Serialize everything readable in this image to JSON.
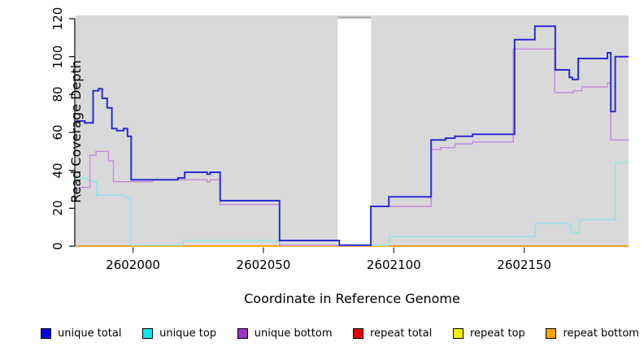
{
  "chart_data": {
    "type": "line",
    "subtype": "step",
    "title": "",
    "xlabel": "Coordinate in Reference Genome",
    "ylabel": "Read Coverage Depth",
    "xlim": [
      2601978,
      2602190
    ],
    "ylim": [
      0,
      120
    ],
    "grid": false,
    "legend_position": "bottom",
    "plot_background": "#d9d9d9",
    "masked_region": {
      "x_start": 2602078.5,
      "x_end": 2602091.3,
      "color": "#ffffff",
      "top_edge_color": "#a6a6a6"
    },
    "x_ticks": [
      {
        "value": 2602000,
        "label": "2602000"
      },
      {
        "value": 2602050,
        "label": "2602050"
      },
      {
        "value": 2602100,
        "label": "2602100"
      },
      {
        "value": 2602150,
        "label": "2602150"
      }
    ],
    "y_ticks": [
      {
        "value": 0,
        "label": "0"
      },
      {
        "value": 20,
        "label": "20"
      },
      {
        "value": 40,
        "label": "40"
      },
      {
        "value": 60,
        "label": "60"
      },
      {
        "value": 80,
        "label": "80"
      },
      {
        "value": 100,
        "label": "100"
      },
      {
        "value": 120,
        "label": "120"
      }
    ],
    "draw_order": [
      3,
      4,
      5,
      1,
      2,
      0
    ],
    "series": [
      {
        "id": "unique-total",
        "label": "unique total",
        "color": "#2b2bd5",
        "legend_color": "#0000e0",
        "width": 2,
        "points": [
          [
            2601978,
            66
          ],
          [
            2601981.5,
            65
          ],
          [
            2601984.7,
            82
          ],
          [
            2601986.8,
            83
          ],
          [
            2601988.2,
            78
          ],
          [
            2601990.1,
            73
          ],
          [
            2601991.9,
            62
          ],
          [
            2601993.8,
            61
          ],
          [
            2601996.4,
            62
          ],
          [
            2601997.9,
            58
          ],
          [
            2601999.3,
            35
          ],
          [
            2602017.2,
            36
          ],
          [
            2602019.8,
            39
          ],
          [
            2602028.4,
            38
          ],
          [
            2602029.6,
            39
          ],
          [
            2602033.4,
            24
          ],
          [
            2602056.2,
            3
          ],
          [
            2602079.1,
            0.5
          ],
          [
            2602091.2,
            21
          ],
          [
            2602098.1,
            26
          ],
          [
            2602114.3,
            56
          ],
          [
            2602119.8,
            57
          ],
          [
            2602123.4,
            58
          ],
          [
            2602130.2,
            59
          ],
          [
            2602146.3,
            109
          ],
          [
            2602154.1,
            116
          ],
          [
            2602161.9,
            93
          ],
          [
            2602167.3,
            89
          ],
          [
            2602168.5,
            88
          ],
          [
            2602170.7,
            99
          ],
          [
            2602181.9,
            102
          ],
          [
            2602183.2,
            71
          ],
          [
            2602184.9,
            100
          ],
          [
            2602190,
            100
          ]
        ]
      },
      {
        "id": "unique-top",
        "label": "unique top",
        "color": "#8fe4ec",
        "legend_color": "#00eaf0",
        "width": 1.4,
        "points": [
          [
            2601978,
            36
          ],
          [
            2601982.2,
            35
          ],
          [
            2601984.2,
            34
          ],
          [
            2601986,
            27
          ],
          [
            2601996.5,
            26
          ],
          [
            2601998,
            25
          ],
          [
            2601999.2,
            0.5
          ],
          [
            2602019.3,
            3
          ],
          [
            2602079.1,
            0.4
          ],
          [
            2602098.2,
            5
          ],
          [
            2602154.2,
            12
          ],
          [
            2602166.7,
            11
          ],
          [
            2602167.9,
            7
          ],
          [
            2602171.1,
            14
          ],
          [
            2602184.9,
            44
          ],
          [
            2602190,
            44
          ]
        ]
      },
      {
        "id": "unique-bottom",
        "label": "unique bottom",
        "color": "#c489dd",
        "legend_color": "#9932cc",
        "width": 1.4,
        "points": [
          [
            2601978,
            30
          ],
          [
            2601979.4,
            31
          ],
          [
            2601983.5,
            48
          ],
          [
            2601985.8,
            50
          ],
          [
            2601990.6,
            45
          ],
          [
            2601992.5,
            34
          ],
          [
            2602007.4,
            35
          ],
          [
            2602028.4,
            34
          ],
          [
            2602029.6,
            35
          ],
          [
            2602033.4,
            22
          ],
          [
            2602056.2,
            0.4
          ],
          [
            2602079.1,
            0.3
          ],
          [
            2602091.2,
            21
          ],
          [
            2602114.3,
            51
          ],
          [
            2602117.9,
            52
          ],
          [
            2602123.4,
            54
          ],
          [
            2602130.2,
            55
          ],
          [
            2602145.8,
            104
          ],
          [
            2602161.7,
            81
          ],
          [
            2602168.8,
            82
          ],
          [
            2602172.1,
            84
          ],
          [
            2602181.9,
            86
          ],
          [
            2602183.2,
            56
          ],
          [
            2602190,
            56
          ]
        ]
      },
      {
        "id": "repeat-total",
        "label": "repeat total",
        "color": "#e60000",
        "legend_color": "#e60000",
        "width": 1.2,
        "points": [
          [
            2601978,
            0.15
          ],
          [
            2602190,
            0.15
          ]
        ]
      },
      {
        "id": "repeat-top",
        "label": "repeat top",
        "color": "#f2f200",
        "legend_color": "#f2f200",
        "width": 1.2,
        "points": [
          [
            2601978,
            0
          ],
          [
            2602190,
            0
          ]
        ]
      },
      {
        "id": "repeat-bottom",
        "label": "repeat bottom",
        "color": "#ffa500",
        "legend_color": "#ffa500",
        "width": 1.6,
        "points": [
          [
            2601978,
            0
          ],
          [
            2602190,
            0
          ]
        ]
      }
    ]
  }
}
